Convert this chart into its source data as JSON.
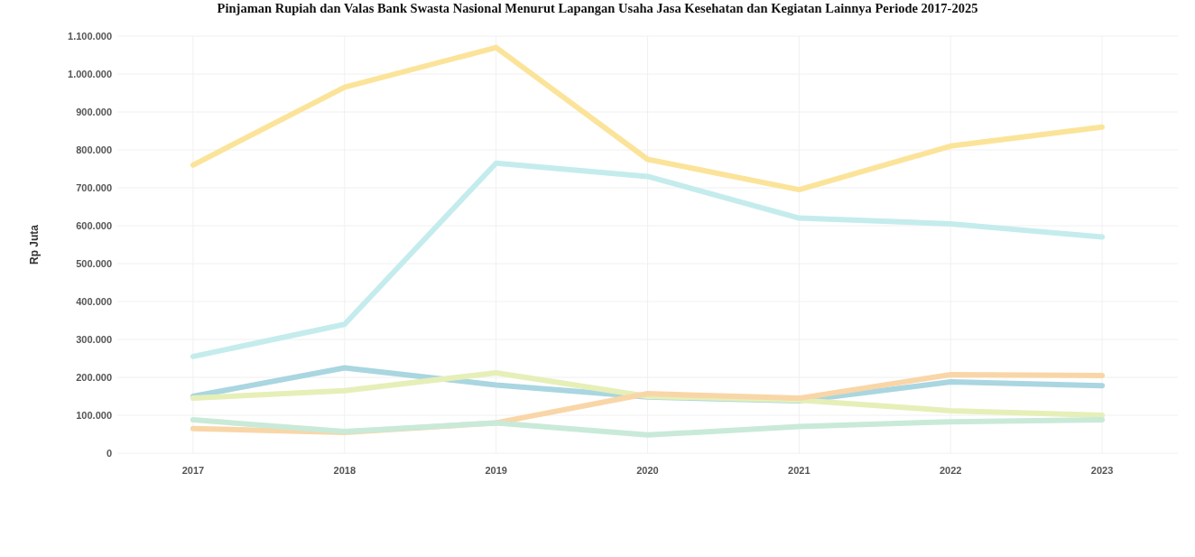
{
  "chart_data": {
    "type": "line",
    "title": "Pinjaman Rupiah dan Valas Bank Swasta Nasional Menurut Lapangan Usaha Jasa Kesehatan dan Kegiatan Lainnya Periode 2017-2025",
    "ylabel": "Rp Juta",
    "categories": [
      "2017",
      "2018",
      "2019",
      "2020",
      "2021",
      "2022",
      "2023"
    ],
    "series": [
      {
        "color": "#fbe49a",
        "values": [
          760000,
          965000,
          1070000,
          775000,
          695000,
          810000,
          860000
        ]
      },
      {
        "color": "#c5ecec",
        "values": [
          255000,
          340000,
          765000,
          730000,
          620000,
          605000,
          570000
        ]
      },
      {
        "color": "#a9d6e0",
        "values": [
          150000,
          225000,
          180000,
          148000,
          138000,
          188000,
          178000
        ]
      },
      {
        "color": "#e6efb8",
        "values": [
          145000,
          165000,
          212000,
          150000,
          140000,
          112000,
          100000
        ]
      },
      {
        "color": "#f9d6a8",
        "values": [
          65000,
          55000,
          80000,
          157000,
          145000,
          207000,
          205000
        ]
      },
      {
        "color": "#c9ead8",
        "values": [
          88000,
          57000,
          80000,
          48000,
          70000,
          83000,
          88000
        ]
      }
    ],
    "ylim": [
      0,
      1100000
    ],
    "yticks": [
      0,
      {
        "value": 100000,
        "label": "100.000"
      },
      {
        "value": 200000,
        "label": "200.000"
      },
      {
        "value": 300000,
        "label": "300.000"
      },
      {
        "value": 400000,
        "label": "400.000"
      },
      {
        "value": 500000,
        "label": "500.000"
      },
      {
        "value": 600000,
        "label": "600.000"
      },
      {
        "value": 700000,
        "label": "700.000"
      },
      {
        "value": 800000,
        "label": "800.000"
      },
      {
        "value": 900000,
        "label": "900.000"
      },
      {
        "value": 1000000,
        "label": "1.000.000"
      },
      {
        "value": 1100000,
        "label": "1.100.000"
      }
    ],
    "grid": true,
    "marker": "none",
    "line_style": "solid"
  }
}
